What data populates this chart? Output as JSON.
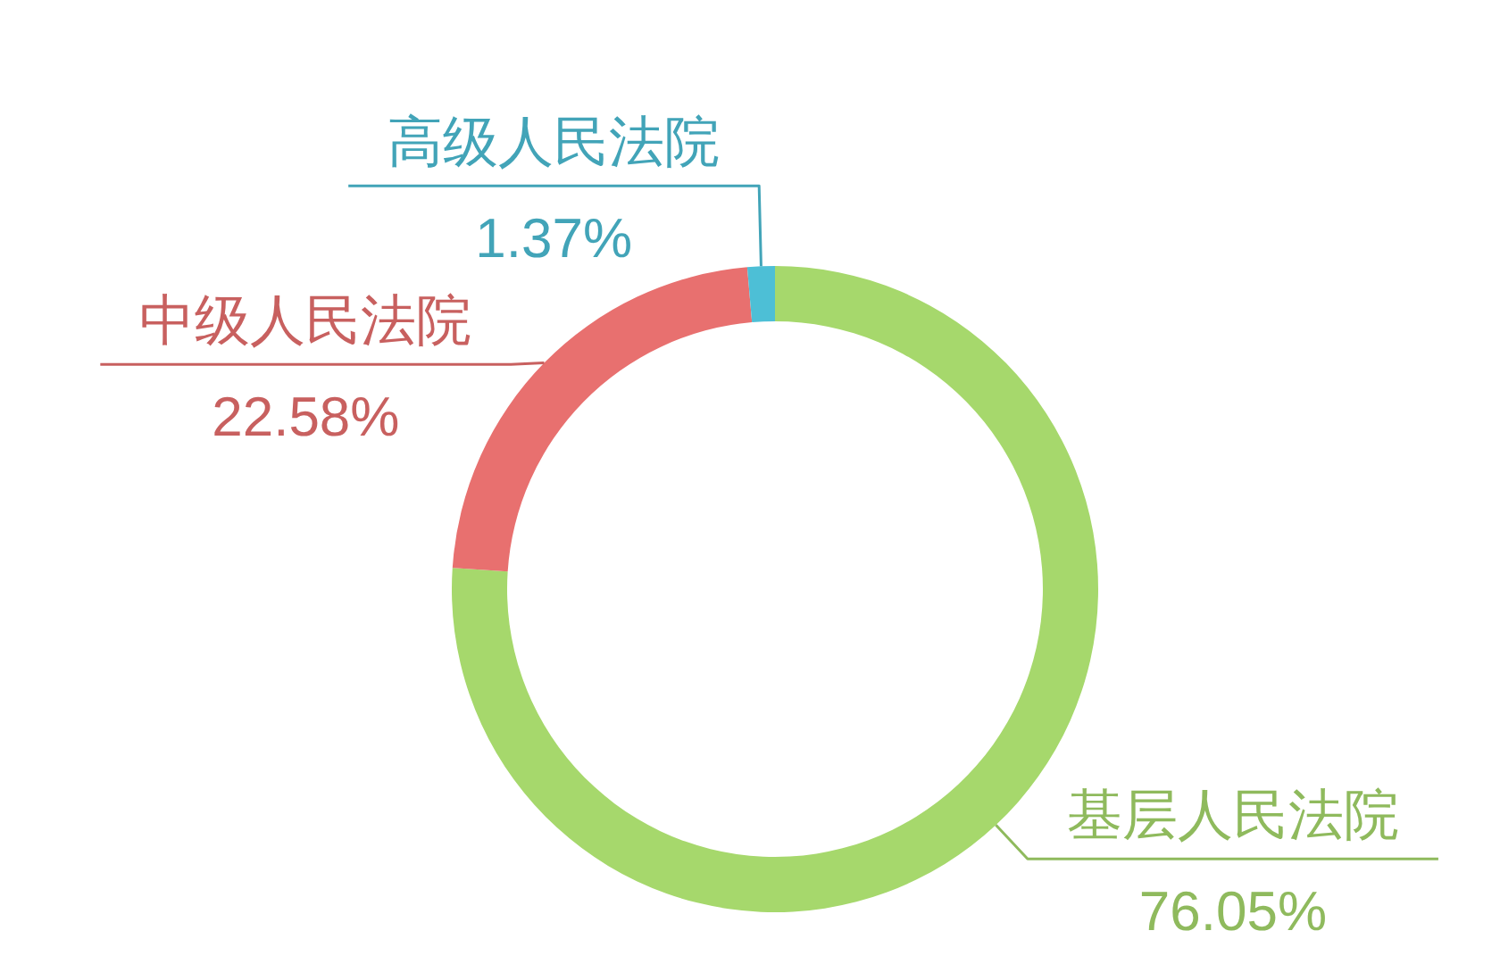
{
  "chart_data": {
    "type": "donut",
    "categories": [
      "基层人民法院",
      "中级人民法院",
      "高级人民法院"
    ],
    "values": [
      76.05,
      22.58,
      1.37
    ],
    "colors": [
      "#a6d86c",
      "#e8706f",
      "#4dbfd6"
    ],
    "value_labels": [
      "76.05%",
      "22.58%",
      "1.37%"
    ]
  }
}
